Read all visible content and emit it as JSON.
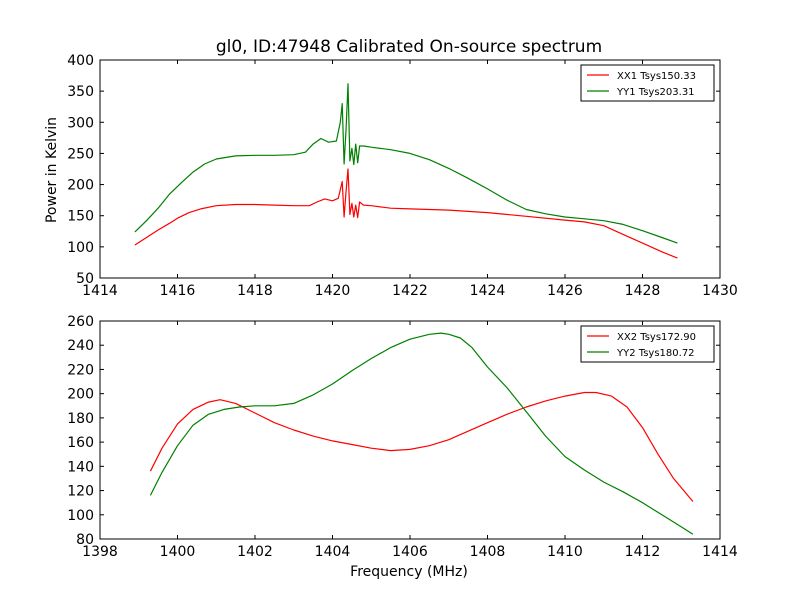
{
  "figure": {
    "title": "gl0, ID:47948 Calibrated On-source spectrum",
    "ylabel": "Power in Kelvin",
    "xlabel": "Frequency (MHz)"
  },
  "chart_data": [
    {
      "type": "line",
      "xlim": [
        1414,
        1430
      ],
      "ylim": [
        50,
        400
      ],
      "xticks": [
        1414,
        1416,
        1418,
        1420,
        1422,
        1424,
        1426,
        1428,
        1430
      ],
      "yticks": [
        50,
        100,
        150,
        200,
        250,
        300,
        350,
        400
      ],
      "legend_position": "top-right",
      "series": [
        {
          "name": "XX1 Tsys150.33",
          "color": "#ff0000",
          "x": [
            1414.9,
            1415.2,
            1415.5,
            1415.8,
            1416.0,
            1416.3,
            1416.6,
            1417.0,
            1417.5,
            1418.0,
            1418.5,
            1419.0,
            1419.4,
            1419.6,
            1419.8,
            1420.0,
            1420.15,
            1420.25,
            1420.3,
            1420.35,
            1420.4,
            1420.45,
            1420.5,
            1420.55,
            1420.6,
            1420.65,
            1420.7,
            1420.8,
            1421.0,
            1421.5,
            1422.0,
            1423.0,
            1424.0,
            1425.0,
            1426.0,
            1426.5,
            1427.0,
            1427.5,
            1428.0,
            1428.5,
            1428.9
          ],
          "y": [
            103,
            115,
            127,
            138,
            146,
            155,
            161,
            166,
            168,
            168,
            167,
            166,
            166,
            172,
            177,
            174,
            178,
            205,
            148,
            190,
            225,
            152,
            170,
            148,
            167,
            147,
            172,
            167,
            166,
            162,
            161,
            159,
            155,
            149,
            143,
            140,
            134,
            120,
            106,
            92,
            82
          ]
        },
        {
          "name": "YY1 Tsys203.31",
          "color": "#008000",
          "x": [
            1414.9,
            1415.2,
            1415.5,
            1415.8,
            1416.1,
            1416.4,
            1416.7,
            1417.0,
            1417.5,
            1418.0,
            1418.5,
            1419.0,
            1419.3,
            1419.5,
            1419.7,
            1419.9,
            1420.1,
            1420.2,
            1420.25,
            1420.3,
            1420.35,
            1420.4,
            1420.45,
            1420.5,
            1420.55,
            1420.6,
            1420.65,
            1420.7,
            1420.8,
            1421.0,
            1421.5,
            1422.0,
            1422.5,
            1423.0,
            1423.5,
            1424.0,
            1424.5,
            1425.0,
            1425.5,
            1426.0,
            1426.5,
            1427.0,
            1427.5,
            1428.0,
            1428.5,
            1428.9
          ],
          "y": [
            124,
            142,
            162,
            185,
            203,
            220,
            233,
            241,
            246,
            247,
            247,
            248,
            252,
            265,
            274,
            268,
            270,
            300,
            330,
            233,
            290,
            362,
            238,
            258,
            232,
            265,
            235,
            262,
            262,
            260,
            256,
            250,
            240,
            226,
            210,
            193,
            175,
            160,
            153,
            148,
            145,
            142,
            136,
            126,
            115,
            106
          ]
        }
      ]
    },
    {
      "type": "line",
      "xlim": [
        1398,
        1414
      ],
      "ylim": [
        80,
        260
      ],
      "xticks": [
        1398,
        1400,
        1402,
        1404,
        1406,
        1408,
        1410,
        1412,
        1414
      ],
      "yticks": [
        80,
        100,
        120,
        140,
        160,
        180,
        200,
        220,
        240,
        260
      ],
      "legend_position": "top-right",
      "series": [
        {
          "name": "XX2 Tsys172.90",
          "color": "#ff0000",
          "x": [
            1399.3,
            1399.6,
            1400.0,
            1400.4,
            1400.8,
            1401.1,
            1401.5,
            1402.0,
            1402.5,
            1403.0,
            1403.5,
            1404.0,
            1404.5,
            1405.0,
            1405.5,
            1406.0,
            1406.5,
            1407.0,
            1407.5,
            1408.0,
            1408.5,
            1409.0,
            1409.5,
            1410.0,
            1410.5,
            1410.8,
            1411.2,
            1411.6,
            1412.0,
            1412.4,
            1412.8,
            1413.3
          ],
          "y": [
            136,
            155,
            175,
            187,
            193,
            195,
            192,
            184,
            176,
            170,
            165,
            161,
            158,
            155,
            153,
            154,
            157,
            162,
            169,
            176,
            183,
            189,
            194,
            198,
            201,
            201,
            198,
            189,
            172,
            150,
            130,
            111
          ]
        },
        {
          "name": "YY2 Tsys180.72",
          "color": "#008000",
          "x": [
            1399.3,
            1399.6,
            1400.0,
            1400.4,
            1400.8,
            1401.2,
            1401.6,
            1402.0,
            1402.5,
            1403.0,
            1403.5,
            1404.0,
            1404.5,
            1405.0,
            1405.5,
            1406.0,
            1406.5,
            1406.8,
            1407.0,
            1407.3,
            1407.6,
            1408.0,
            1408.5,
            1409.0,
            1409.5,
            1410.0,
            1410.5,
            1411.0,
            1411.5,
            1412.0,
            1412.5,
            1413.0,
            1413.3
          ],
          "y": [
            116,
            135,
            157,
            174,
            183,
            187,
            189,
            190,
            190,
            192,
            199,
            208,
            219,
            229,
            238,
            245,
            249,
            250,
            249,
            246,
            238,
            222,
            205,
            185,
            165,
            148,
            137,
            127,
            119,
            110,
            100,
            90,
            84
          ]
        }
      ]
    }
  ]
}
